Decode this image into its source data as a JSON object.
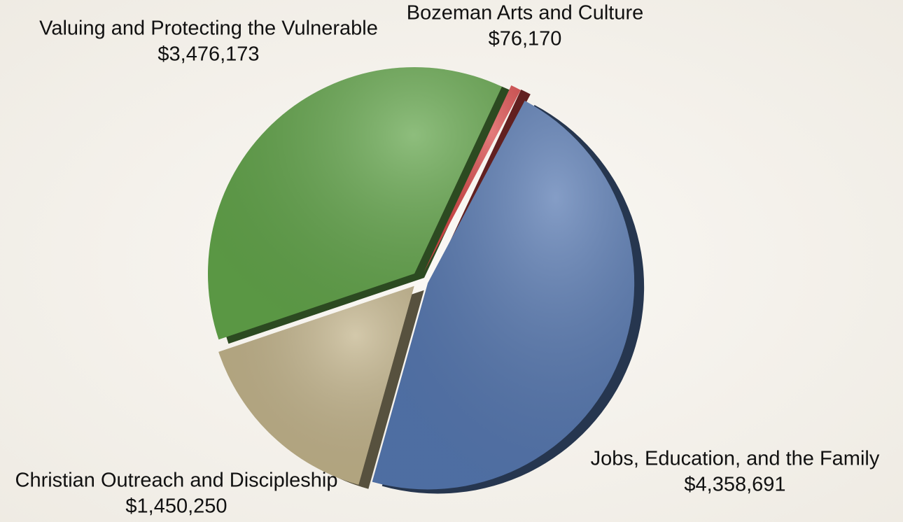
{
  "chart_data": {
    "type": "pie",
    "categories": [
      "Jobs, Education, and the Family",
      "Christian Outreach and Discipleship",
      "Valuing and Protecting the Vulnerable",
      "Bozeman Arts and Culture"
    ],
    "values": [
      4358691,
      1450250,
      3476173,
      76170
    ],
    "value_labels": [
      "$4,358,691",
      "$1,450,250",
      "$3,476,173",
      "$76,170"
    ],
    "colors": [
      "#5577b0",
      "#c2b38a",
      "#62a44a",
      "#d94848"
    ]
  }
}
